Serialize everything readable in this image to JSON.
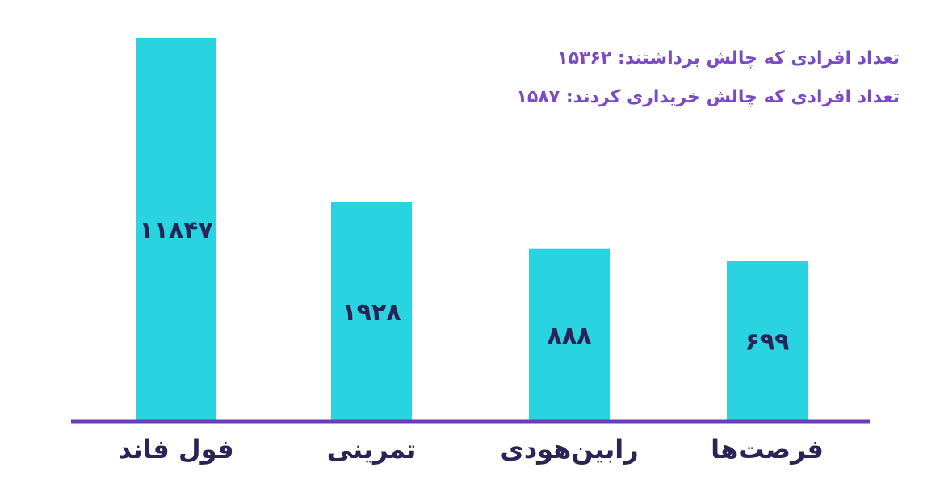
{
  "chart_data": {
    "type": "bar",
    "categories": [
      "فول فاند",
      "تمرینی",
      "رابین‌هودی",
      "فرصت‌ها"
    ],
    "values": [
      11847,
      1928,
      888,
      699
    ],
    "value_labels": [
      "۱۱۸۴۷",
      "۱۹۲۸",
      "۸۸۸",
      "۶۹۹"
    ],
    "annotations": [
      "تعداد افرادی که چالش برداشتند: ۱۵۳۶۲",
      "تعداد افرادی که چالش خریداری کردند: ۱۵۸۷"
    ],
    "title": "",
    "xlabel": "",
    "ylabel": "",
    "axis_display": "non-linear (bar heights not proportional)",
    "grid": false,
    "legend": "none"
  },
  "colors": {
    "bar": "#29d3e0",
    "axis_line": "#6a3db8",
    "value_text": "#2b2355",
    "category_text": "#2b2355",
    "annotation_text": "#7b4bc4",
    "background": "#ffffff"
  }
}
